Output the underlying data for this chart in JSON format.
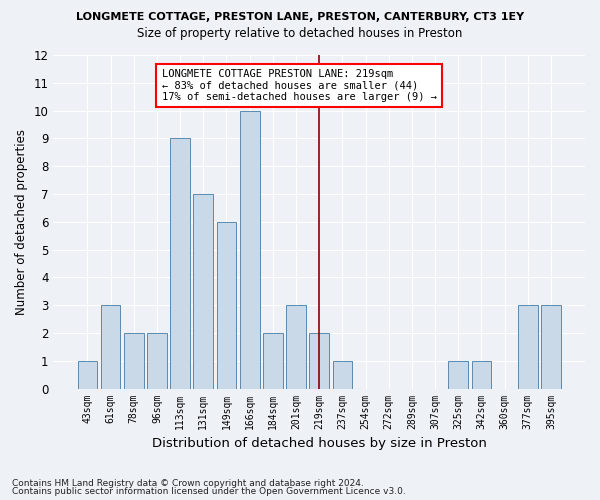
{
  "title1": "LONGMETE COTTAGE, PRESTON LANE, PRESTON, CANTERBURY, CT3 1EY",
  "title2": "Size of property relative to detached houses in Preston",
  "xlabel": "Distribution of detached houses by size in Preston",
  "ylabel": "Number of detached properties",
  "categories": [
    "43sqm",
    "61sqm",
    "78sqm",
    "96sqm",
    "113sqm",
    "131sqm",
    "149sqm",
    "166sqm",
    "184sqm",
    "201sqm",
    "219sqm",
    "237sqm",
    "254sqm",
    "272sqm",
    "289sqm",
    "307sqm",
    "325sqm",
    "342sqm",
    "360sqm",
    "377sqm",
    "395sqm"
  ],
  "values": [
    1,
    3,
    2,
    2,
    9,
    7,
    6,
    10,
    2,
    3,
    2,
    1,
    0,
    0,
    0,
    0,
    1,
    1,
    0,
    3,
    3
  ],
  "bar_color": "#c9d9e8",
  "bar_edge_color": "#5a8ab0",
  "highlight_index": 10,
  "ylim": [
    0,
    12
  ],
  "yticks": [
    0,
    1,
    2,
    3,
    4,
    5,
    6,
    7,
    8,
    9,
    10,
    11,
    12
  ],
  "annotation_title": "LONGMETE COTTAGE PRESTON LANE: 219sqm",
  "annotation_line1": "← 83% of detached houses are smaller (44)",
  "annotation_line2": "17% of semi-detached houses are larger (9) →",
  "footer1": "Contains HM Land Registry data © Crown copyright and database right 2024.",
  "footer2": "Contains public sector information licensed under the Open Government Licence v3.0.",
  "background_color": "#eef2f7",
  "grid_color": "#ffffff"
}
